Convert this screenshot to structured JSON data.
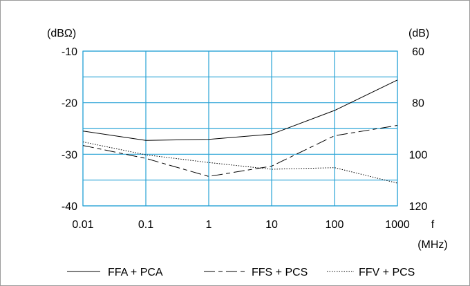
{
  "chart_data": {
    "type": "line",
    "x_scale": "log",
    "x_ticks": [
      "0.01",
      "0.1",
      "1",
      "10",
      "100",
      "1000"
    ],
    "x_values": [
      0.01,
      0.1,
      1,
      10,
      100,
      1000
    ],
    "xlabel": "f",
    "xunit": "(MHz)",
    "ylabel_left": "(dBΩ)",
    "ylabel_right": "(dB)",
    "ylim_left": [
      -40,
      -10
    ],
    "ylim_right": [
      120,
      60
    ],
    "y_ticks_left": [
      "-10",
      "-20",
      "-30",
      "-40"
    ],
    "y_ticks_right": [
      "60",
      "80",
      "100",
      "120"
    ],
    "grid": true,
    "grid_color": "#29a3d6",
    "legend_position": "bottom",
    "series": [
      {
        "name": "FFA + PCA",
        "style": "solid",
        "values": [
          -25.5,
          -27.3,
          -27.1,
          -26.1,
          -21.5,
          -15.6
        ]
      },
      {
        "name": "FFS + PCS",
        "style": "dashed",
        "values": [
          -28.3,
          -30.8,
          -34.3,
          -32.3,
          -26.4,
          -24.4
        ]
      },
      {
        "name": "FFV + PCS",
        "style": "dotted",
        "values": [
          -27.6,
          -30.1,
          -31.6,
          -32.9,
          -32.6,
          -35.6
        ]
      }
    ]
  }
}
